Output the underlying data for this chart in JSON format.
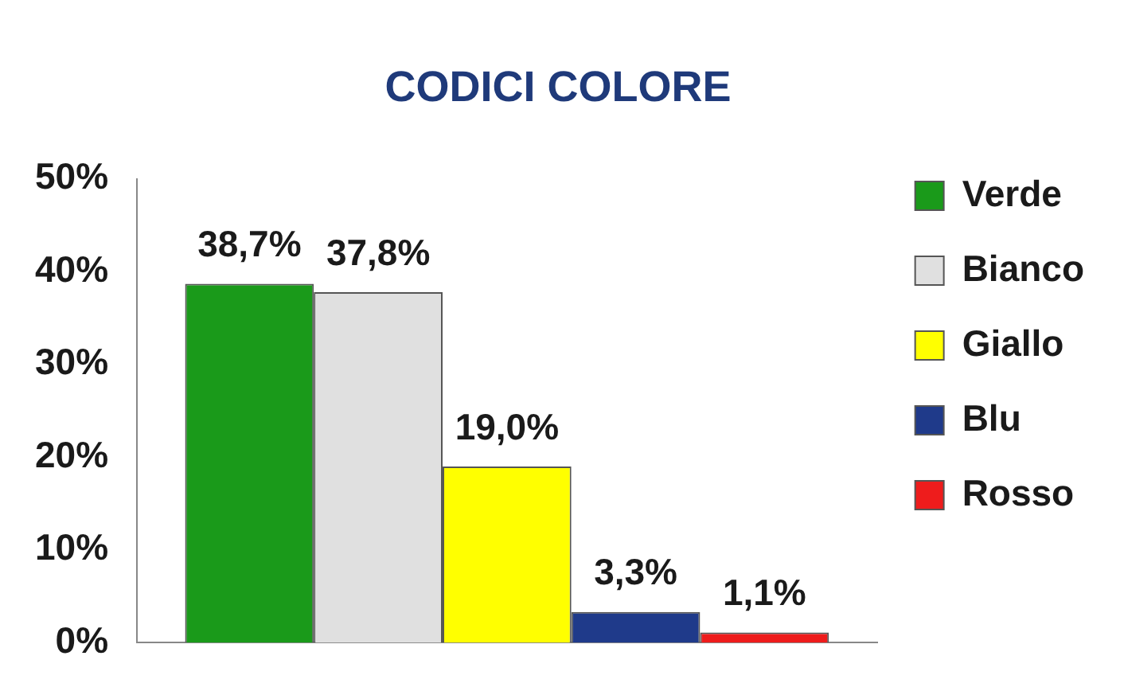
{
  "chart_data": {
    "type": "bar",
    "title": "CODICI COLORE",
    "categories": [
      null
    ],
    "series": [
      {
        "name": "Verde",
        "color": "#1a9a1a",
        "values": [
          38.7
        ],
        "value_labels": [
          "38,7%"
        ]
      },
      {
        "name": "Bianco",
        "color": "#e0e0e0",
        "values": [
          37.8
        ],
        "value_labels": [
          "37,8%"
        ]
      },
      {
        "name": "Giallo",
        "color": "#ffff00",
        "values": [
          19.0
        ],
        "value_labels": [
          "19,0%"
        ]
      },
      {
        "name": "Blu",
        "color": "#1f3a8a",
        "values": [
          3.3
        ],
        "value_labels": [
          "3,3%"
        ]
      },
      {
        "name": "Rosso",
        "color": "#ee1c1c",
        "values": [
          1.1
        ],
        "value_labels": [
          "1,1%"
        ]
      }
    ],
    "ylim": [
      0,
      50
    ],
    "yticks": [
      {
        "value": 0,
        "label": "0%"
      },
      {
        "value": 10,
        "label": "10%"
      },
      {
        "value": 20,
        "label": "20%"
      },
      {
        "value": 30,
        "label": "30%"
      },
      {
        "value": 40,
        "label": "40%"
      },
      {
        "value": 50,
        "label": "50%"
      }
    ],
    "grid": false,
    "legend": "right"
  }
}
